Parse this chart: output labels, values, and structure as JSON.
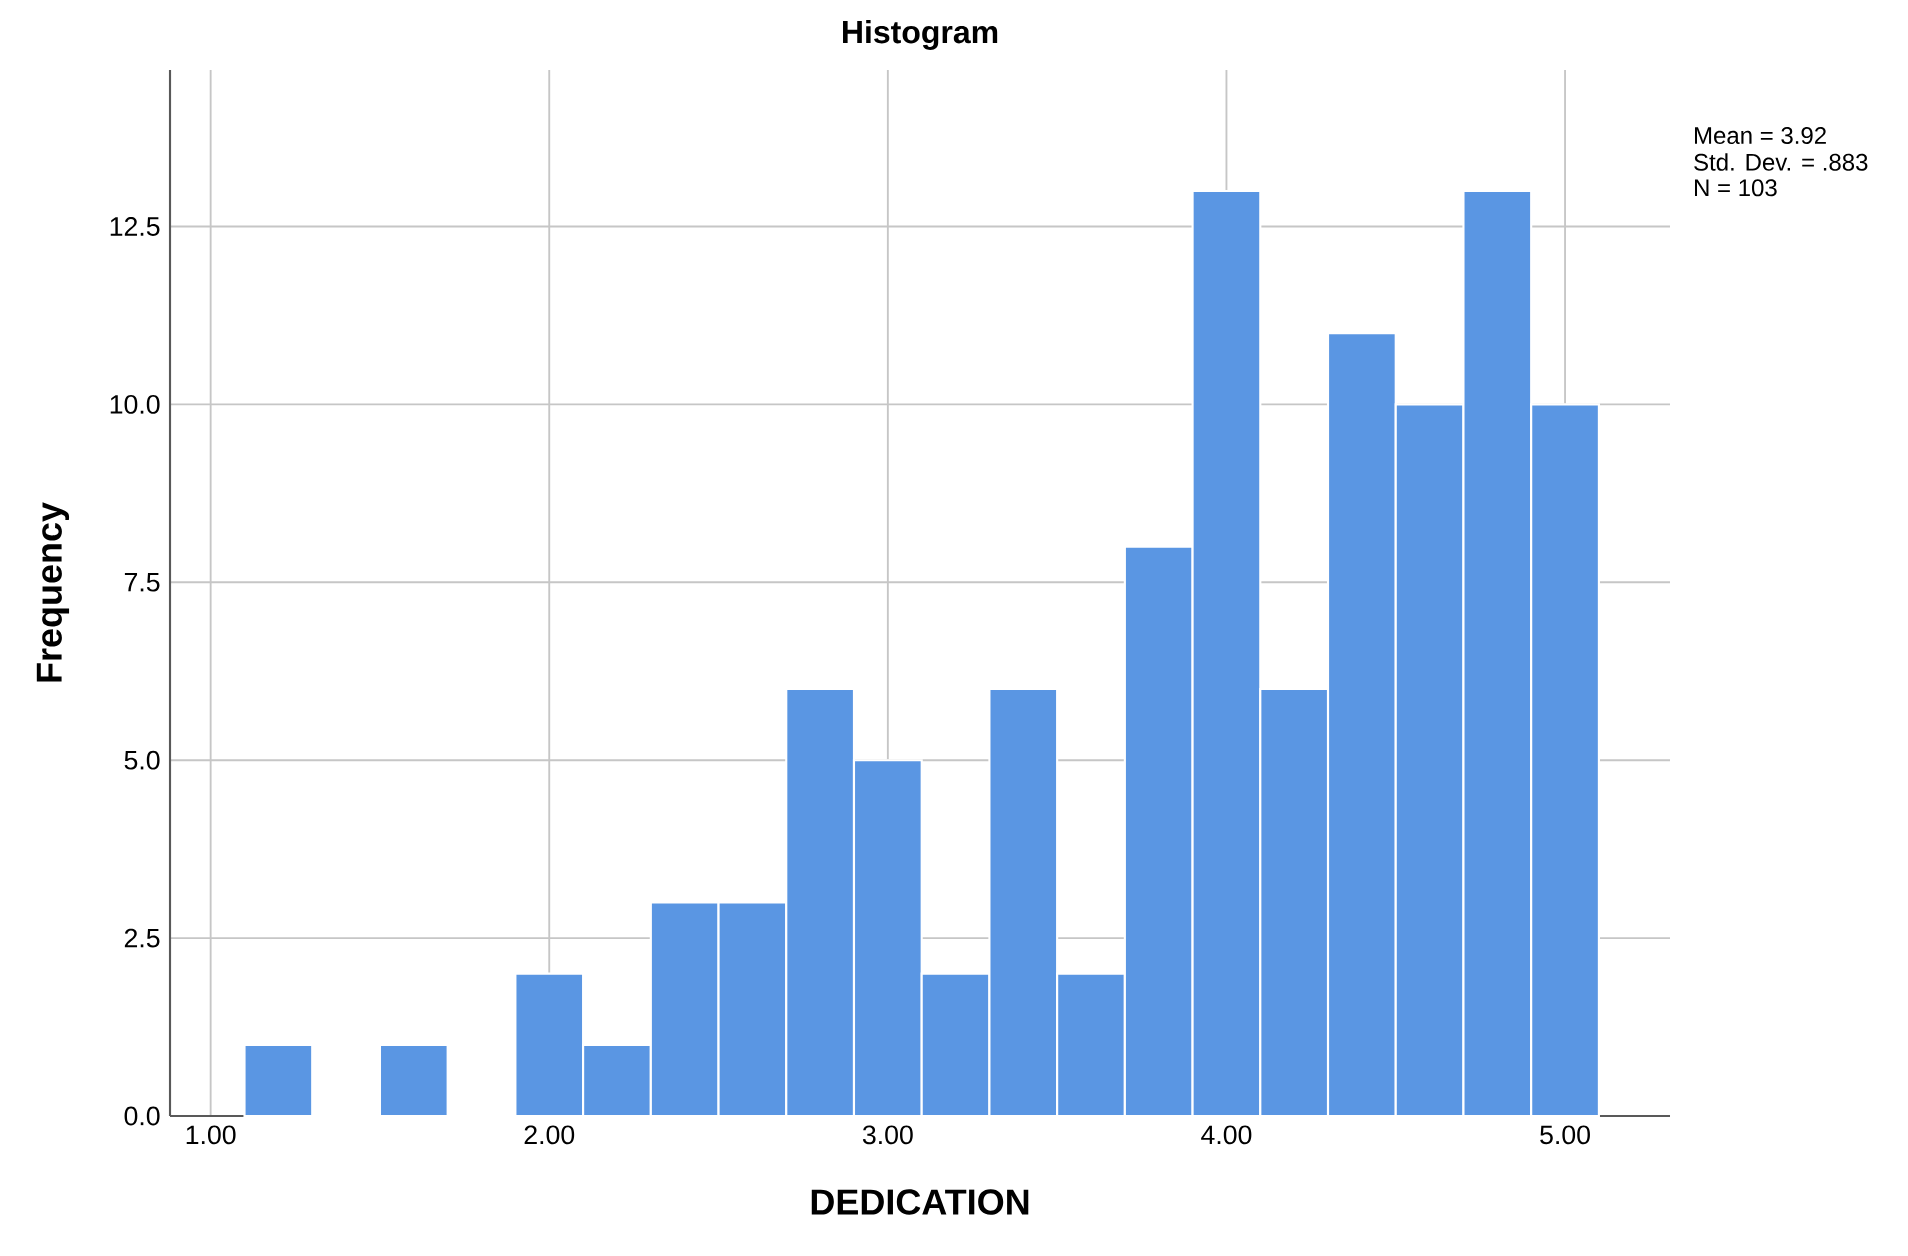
{
  "chart_data": {
    "type": "histogram",
    "title": "Histogram",
    "xlabel": "DEDICATION",
    "ylabel": "Frequency",
    "bins": [
      1.1,
      1.3,
      1.5,
      1.7,
      1.9,
      2.1,
      2.3,
      2.5,
      2.7,
      2.9,
      3.1,
      3.3,
      3.5,
      3.7,
      3.9,
      4.1,
      4.3,
      4.5,
      4.7,
      4.9,
      5.1
    ],
    "values": [
      1,
      0,
      1,
      0,
      2,
      1,
      3,
      3,
      6,
      5,
      2,
      6,
      2,
      8,
      13,
      6,
      11,
      10,
      13,
      10
    ],
    "color": "#5a96e3",
    "xlim": [
      0.88,
      5.31
    ],
    "ylim": [
      0,
      14.7
    ],
    "xticks": [
      {
        "value": 1,
        "label": "1.00"
      },
      {
        "value": 2,
        "label": "2.00"
      },
      {
        "value": 3,
        "label": "3.00"
      },
      {
        "value": 4,
        "label": "4.00"
      },
      {
        "value": 5,
        "label": "5.00"
      }
    ],
    "yticks": [
      {
        "value": 0,
        "label": "0.0"
      },
      {
        "value": 2.5,
        "label": "2.5"
      },
      {
        "value": 5,
        "label": "5.0"
      },
      {
        "value": 7.5,
        "label": "7.5"
      },
      {
        "value": 10,
        "label": "10.0"
      },
      {
        "value": 12.5,
        "label": "12.5"
      }
    ],
    "grid": true,
    "annotations": [
      "Mean = 3.92",
      "Std. Dev. = .883",
      "N = 103"
    ]
  }
}
